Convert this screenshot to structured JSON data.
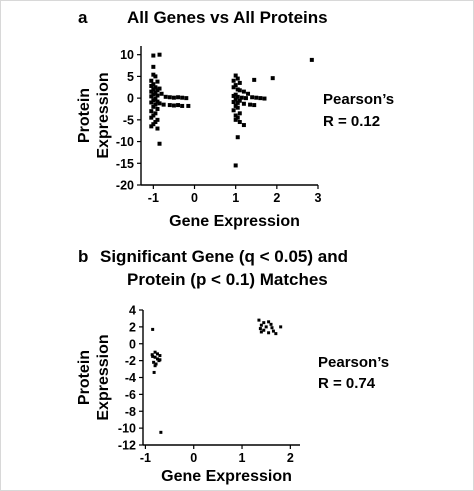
{
  "figure": {
    "panels": [
      {
        "letter": "a",
        "title_lines": [
          "All Genes vs All Proteins"
        ],
        "pearson_line1": "Pearson’s",
        "pearson_line2": "R = 0.12"
      },
      {
        "letter": "b",
        "title_lines": [
          "Significant Gene (q < 0.05) and",
          "Protein (p < 0.1) Matches"
        ],
        "pearson_line1": "Pearson’s",
        "pearson_line2": "R = 0.74"
      }
    ]
  },
  "chart_data": [
    {
      "type": "scatter",
      "title": "All Genes vs All Proteins",
      "xlabel": "Gene Expression",
      "ylabel": "Protein Expression",
      "xlim": [
        -1.3,
        3
      ],
      "ylim": [
        -20,
        12
      ],
      "xticks": [
        -1,
        0,
        1,
        2,
        3
      ],
      "yticks": [
        10,
        5,
        0,
        -5,
        -10,
        -15,
        -20
      ],
      "annotation": "Pearson’s R = 0.12",
      "series": [
        {
          "points": [
            [
              -1.0,
              9.8
            ],
            [
              -0.85,
              10.0
            ],
            [
              -1.0,
              7.2
            ],
            [
              -1.0,
              5.4
            ],
            [
              -0.95,
              5.0
            ],
            [
              -1.05,
              4.0
            ],
            [
              -0.9,
              3.8
            ],
            [
              -1.0,
              3.2
            ],
            [
              -1.05,
              2.8
            ],
            [
              -0.95,
              2.5
            ],
            [
              -0.85,
              2.2
            ],
            [
              -1.0,
              2.0
            ],
            [
              -0.9,
              1.8
            ],
            [
              -1.05,
              1.5
            ],
            [
              -0.95,
              1.2
            ],
            [
              -0.8,
              1.0
            ],
            [
              -1.0,
              0.8
            ],
            [
              -0.9,
              0.6
            ],
            [
              -1.05,
              0.4
            ],
            [
              -0.7,
              0.3
            ],
            [
              -0.6,
              0.2
            ],
            [
              -0.5,
              0.1
            ],
            [
              -0.4,
              0.2
            ],
            [
              -0.3,
              0.1
            ],
            [
              -0.2,
              0.0
            ],
            [
              -0.15,
              -1.8
            ],
            [
              -0.95,
              -0.2
            ],
            [
              -1.0,
              -0.5
            ],
            [
              -0.9,
              -0.8
            ],
            [
              -1.05,
              -1.0
            ],
            [
              -0.85,
              -1.2
            ],
            [
              -0.75,
              -1.5
            ],
            [
              -0.6,
              -1.6
            ],
            [
              -0.5,
              -1.7
            ],
            [
              -0.4,
              -1.6
            ],
            [
              -0.3,
              -1.8
            ],
            [
              -0.95,
              -1.5
            ],
            [
              -1.0,
              -2.0
            ],
            [
              -0.9,
              -2.5
            ],
            [
              -1.05,
              -3.0
            ],
            [
              -0.95,
              -3.5
            ],
            [
              -1.0,
              -4.0
            ],
            [
              -1.05,
              -4.5
            ],
            [
              -0.9,
              -5.0
            ],
            [
              -0.95,
              -5.5
            ],
            [
              -1.0,
              -6.0
            ],
            [
              -1.05,
              -6.5
            ],
            [
              -0.9,
              -7.0
            ],
            [
              -0.85,
              -10.5
            ],
            [
              1.0,
              5.2
            ],
            [
              1.05,
              4.5
            ],
            [
              0.95,
              4.0
            ],
            [
              1.1,
              3.5
            ],
            [
              1.0,
              3.0
            ],
            [
              0.95,
              2.5
            ],
            [
              1.05,
              2.0
            ],
            [
              1.1,
              1.8
            ],
            [
              1.2,
              1.5
            ],
            [
              1.3,
              1.0
            ],
            [
              1.0,
              0.8
            ],
            [
              0.95,
              0.5
            ],
            [
              1.05,
              0.3
            ],
            [
              1.15,
              0.1
            ],
            [
              1.25,
              0.0
            ],
            [
              1.4,
              0.2
            ],
            [
              1.5,
              0.1
            ],
            [
              1.6,
              0.0
            ],
            [
              1.7,
              -0.1
            ],
            [
              1.0,
              -0.3
            ],
            [
              1.1,
              -0.6
            ],
            [
              0.95,
              -0.9
            ],
            [
              1.05,
              -1.1
            ],
            [
              1.2,
              -1.3
            ],
            [
              1.35,
              -1.5
            ],
            [
              1.45,
              -1.6
            ],
            [
              1.0,
              -1.8
            ],
            [
              1.05,
              -2.2
            ],
            [
              0.95,
              -2.8
            ],
            [
              1.1,
              -3.5
            ],
            [
              1.0,
              -4.0
            ],
            [
              1.05,
              -4.5
            ],
            [
              1.0,
              -5.0
            ],
            [
              1.1,
              -5.5
            ],
            [
              1.2,
              -6.2
            ],
            [
              1.45,
              4.2
            ],
            [
              1.9,
              4.6
            ],
            [
              1.05,
              -9.0
            ],
            [
              1.0,
              -15.5
            ],
            [
              2.85,
              8.8
            ]
          ]
        }
      ]
    },
    {
      "type": "scatter",
      "title": "Significant Gene (q < 0.05) and Protein (p < 0.1) Matches",
      "xlabel": "Gene Expression",
      "ylabel": "Protein Expression",
      "xlim": [
        -1.05,
        2.2
      ],
      "ylim": [
        -12,
        4
      ],
      "xticks": [
        -1,
        0,
        1,
        2
      ],
      "yticks": [
        4,
        2,
        0,
        -2,
        -4,
        -6,
        -8,
        -10,
        -12
      ],
      "annotation": "Pearson’s R = 0.74",
      "series": [
        {
          "points": [
            [
              -0.85,
              1.7
            ],
            [
              -0.8,
              -1.0
            ],
            [
              -0.75,
              -1.2
            ],
            [
              -0.7,
              -1.4
            ],
            [
              -0.85,
              -1.5
            ],
            [
              -0.8,
              -1.6
            ],
            [
              -0.75,
              -1.8
            ],
            [
              -0.72,
              -2.0
            ],
            [
              -0.83,
              -2.2
            ],
            [
              -0.78,
              -2.4
            ],
            [
              -0.7,
              -1.9
            ],
            [
              -0.86,
              -1.3
            ],
            [
              -0.8,
              -2.6
            ],
            [
              -0.82,
              -3.4
            ],
            [
              -0.68,
              -10.5
            ],
            [
              1.35,
              2.8
            ],
            [
              1.45,
              2.5
            ],
            [
              1.55,
              2.6
            ],
            [
              1.4,
              2.2
            ],
            [
              1.5,
              2.0
            ],
            [
              1.38,
              1.8
            ],
            [
              1.62,
              1.9
            ],
            [
              1.45,
              1.6
            ],
            [
              1.55,
              1.3
            ],
            [
              1.65,
              1.5
            ],
            [
              1.4,
              1.4
            ],
            [
              1.6,
              2.3
            ],
            [
              1.8,
              2.0
            ],
            [
              1.7,
              1.2
            ]
          ]
        }
      ]
    }
  ]
}
